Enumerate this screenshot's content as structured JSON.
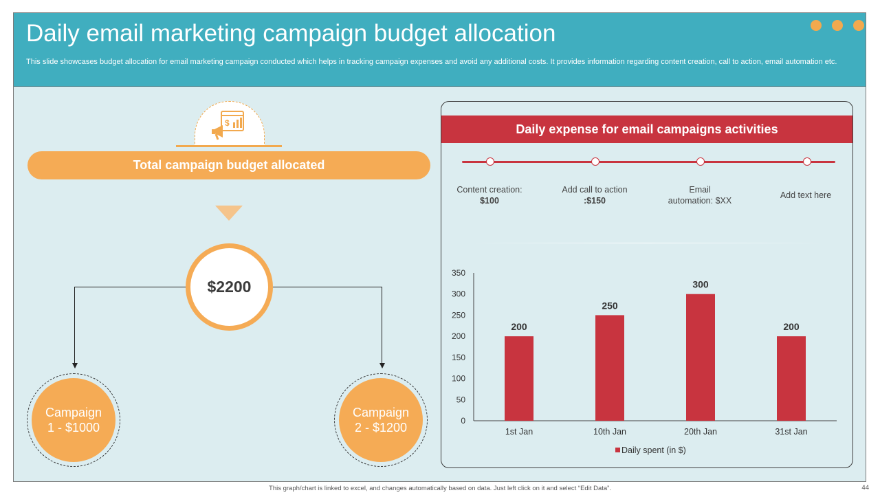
{
  "header": {
    "title": "Daily email marketing campaign budget allocation",
    "subtitle": "This slide showcases budget allocation for email marketing campaign conducted which helps in tracking campaign expenses and avoid any additional costs. It provides information regarding content creation, call to action, email automation etc."
  },
  "left": {
    "pill_label": "Total campaign budget allocated",
    "total": "$2200",
    "campaign1": "Campaign\n1 - $1000",
    "campaign2": "Campaign\n2 - $1200"
  },
  "panel": {
    "title": "Daily expense for email campaigns activities",
    "items": [
      {
        "l1": "Content creation:",
        "l2": "$100"
      },
      {
        "l1": "Add call to action",
        "l2": ":$150"
      },
      {
        "l1": "Email",
        "l2": "automation: $XX"
      },
      {
        "l1": "Add text here",
        "l2": ""
      }
    ]
  },
  "chart_data": {
    "type": "bar",
    "categories": [
      "1st Jan",
      "10th Jan",
      "20th Jan",
      "31st Jan"
    ],
    "series": [
      {
        "name": "Daily spent (in $)",
        "values": [
          200,
          250,
          300,
          200
        ]
      }
    ],
    "ylim": [
      0,
      350
    ],
    "yticks": [
      0,
      50,
      100,
      150,
      200,
      250,
      300,
      350
    ],
    "legend": "bottom",
    "color": "#c8343f"
  },
  "footer": {
    "note": "This graph/chart is linked to excel, and changes automatically based on data. Just left click on it and select “Edit Data”.",
    "page": "44"
  },
  "colors": {
    "teal": "#40aebf",
    "orange": "#f5ab55",
    "red": "#c8343f"
  }
}
